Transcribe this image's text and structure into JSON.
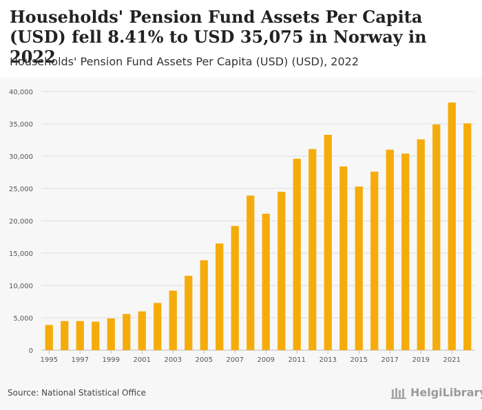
{
  "header": {
    "title": "Households' Pension Fund Assets Per Capita (USD) fell 8.41% to USD 35,075 in Norway in 2022",
    "subtitle": "Households' Pension Fund Assets Per Capita (USD) (USD), 2022"
  },
  "footer": {
    "source": "Source: National Statistical Office",
    "logo_text": "HelgiLibrary"
  },
  "colors": {
    "bar": "#f5ac0b",
    "grid": "#dddddd",
    "axis_text": "#555555"
  },
  "chart_data": {
    "type": "bar",
    "title": "Households' Pension Fund Assets Per Capita (USD) fell 8.41% to USD 35,075 in Norway in 2022",
    "subtitle": "Households' Pension Fund Assets Per Capita (USD) (USD), 2022",
    "xlabel": "",
    "ylabel": "",
    "ylim": [
      0,
      40000
    ],
    "yticks": [
      0,
      5000,
      10000,
      15000,
      20000,
      25000,
      30000,
      35000,
      40000
    ],
    "ytick_labels": [
      "0",
      "5,000",
      "10,000",
      "15,000",
      "20,000",
      "25,000",
      "30,000",
      "35,000",
      "40,000"
    ],
    "xtick_labels": [
      "1995",
      "1997",
      "1999",
      "2001",
      "2003",
      "2005",
      "2007",
      "2009",
      "2011",
      "2013",
      "2015",
      "2017",
      "2019",
      "2021"
    ],
    "categories": [
      "1995",
      "1996",
      "1997",
      "1998",
      "1999",
      "2000",
      "2001",
      "2002",
      "2003",
      "2004",
      "2005",
      "2006",
      "2007",
      "2008",
      "2009",
      "2010",
      "2011",
      "2012",
      "2013",
      "2014",
      "2015",
      "2016",
      "2017",
      "2018",
      "2019",
      "2020",
      "2021",
      "2022"
    ],
    "values": [
      3900,
      4500,
      4500,
      4400,
      4900,
      5600,
      6000,
      7300,
      9200,
      11500,
      13900,
      16500,
      19200,
      23900,
      21100,
      24500,
      29600,
      31100,
      33300,
      28400,
      25300,
      27600,
      31000,
      30400,
      32600,
      34900,
      38300,
      35075
    ],
    "grid": true,
    "legend": "none"
  }
}
